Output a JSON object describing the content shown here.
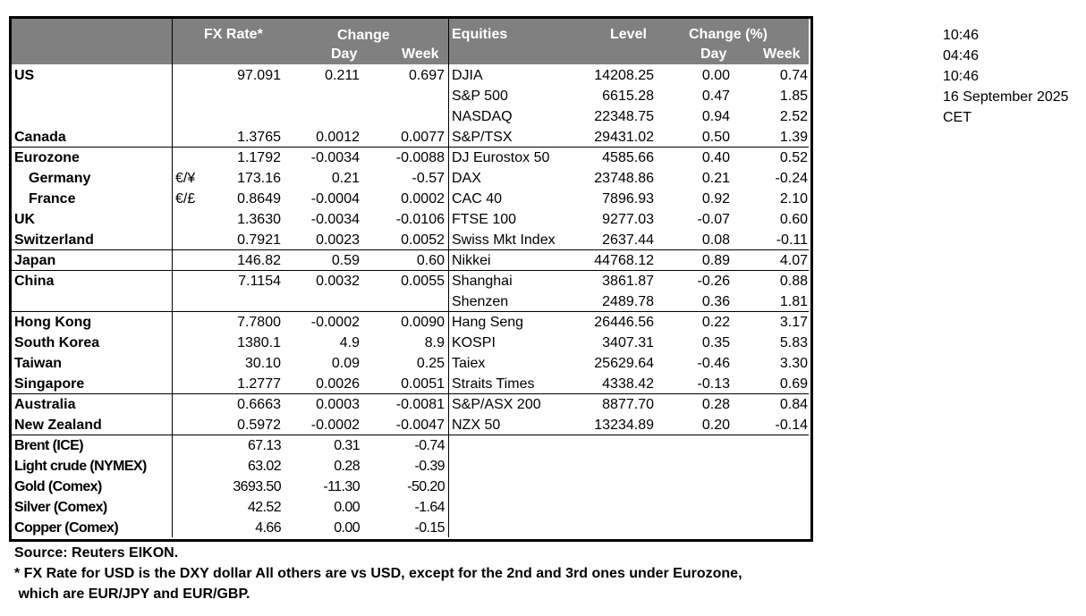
{
  "header": {
    "fx_rate": "FX Rate*",
    "change": "Change",
    "day": "Day",
    "week": "Week",
    "equities": "Equities",
    "level": "Level",
    "change_pct": "Change (%)",
    "eq_day": "Day",
    "eq_week": "Week"
  },
  "groups": [
    {
      "rows": [
        {
          "name": "US",
          "pair": "",
          "rate": "97.091",
          "day": "0.211",
          "week": "0.697",
          "eq": {
            "name": "DJIA",
            "level": "14208.25",
            "day": "0.00",
            "week": "0.74"
          }
        },
        {
          "name": "",
          "pair": "",
          "rate": "",
          "day": "",
          "week": "",
          "eq": {
            "name": "S&P 500",
            "level": "6615.28",
            "day": "0.47",
            "week": "1.85"
          }
        },
        {
          "name": "",
          "pair": "",
          "rate": "",
          "day": "",
          "week": "",
          "eq": {
            "name": "NASDAQ",
            "level": "22348.75",
            "day": "0.94",
            "week": "2.52"
          }
        },
        {
          "name": "Canada",
          "pair": "",
          "rate": "1.3765",
          "day": "0.0012",
          "week": "0.0077",
          "eq": {
            "name": "S&P/TSX",
            "level": "29431.02",
            "day": "0.50",
            "week": "1.39"
          }
        }
      ]
    },
    {
      "rows": [
        {
          "name": "Eurozone",
          "pair": "",
          "rate": "1.1792",
          "day": "-0.0034",
          "week": "-0.0088",
          "eq": {
            "name": "DJ Eurostox 50",
            "level": "4585.66",
            "day": "0.40",
            "week": "0.52"
          }
        },
        {
          "name": "Germany",
          "indent": true,
          "pair": "€/¥",
          "rate": "173.16",
          "day": "0.21",
          "week": "-0.57",
          "eq": {
            "name": "DAX",
            "level": "23748.86",
            "day": "0.21",
            "week": "-0.24"
          }
        },
        {
          "name": "France",
          "indent": true,
          "pair": "€/£",
          "rate": "0.8649",
          "day": "-0.0004",
          "week": "0.0002",
          "eq": {
            "name": "CAC 40",
            "level": "7896.93",
            "day": "0.92",
            "week": "2.10"
          }
        },
        {
          "name": "UK",
          "pair": "",
          "rate": "1.3630",
          "day": "-0.0034",
          "week": "-0.0106",
          "eq": {
            "name": "FTSE 100",
            "level": "9277.03",
            "day": "-0.07",
            "week": "0.60"
          }
        },
        {
          "name": "Switzerland",
          "pair": "",
          "rate": "0.7921",
          "day": "0.0023",
          "week": "0.0052",
          "eq": {
            "name": "Swiss Mkt Index",
            "level": "2637.44",
            "day": "0.08",
            "week": "-0.11"
          }
        }
      ]
    },
    {
      "rows": [
        {
          "name": "Japan",
          "pair": "",
          "rate": "146.82",
          "day": "0.59",
          "week": "0.60",
          "eq": {
            "name": "Nikkei",
            "level": "44768.12",
            "day": "0.89",
            "week": "4.07"
          }
        }
      ]
    },
    {
      "rows": [
        {
          "name": "China",
          "pair": "",
          "rate": "7.1154",
          "day": "0.0032",
          "week": "0.0055",
          "eq": {
            "name": "Shanghai",
            "level": "3861.87",
            "day": "-0.26",
            "week": "0.88"
          }
        },
        {
          "name": "",
          "pair": "",
          "rate": "",
          "day": "",
          "week": "",
          "eq": {
            "name": "Shenzen",
            "level": "2489.78",
            "day": "0.36",
            "week": "1.81"
          }
        }
      ]
    },
    {
      "rows": [
        {
          "name": "Hong Kong",
          "pair": "",
          "rate": "7.7800",
          "day": "-0.0002",
          "week": "0.0090",
          "eq": {
            "name": "Hang Seng",
            "level": "26446.56",
            "day": "0.22",
            "week": "3.17"
          }
        },
        {
          "name": "South Korea",
          "pair": "",
          "rate": "1380.1",
          "day": "4.9",
          "week": "8.9",
          "eq": {
            "name": "KOSPI",
            "level": "3407.31",
            "day": "0.35",
            "week": "5.83"
          }
        },
        {
          "name": "Taiwan",
          "pair": "",
          "rate": "30.10",
          "day": "0.09",
          "week": "0.25",
          "eq": {
            "name": "Taiex",
            "level": "25629.64",
            "day": "-0.46",
            "week": "3.30"
          }
        },
        {
          "name": "Singapore",
          "pair": "",
          "rate": "1.2777",
          "day": "0.0026",
          "week": "0.0051",
          "eq": {
            "name": "Straits Times",
            "level": "4338.42",
            "day": "-0.13",
            "week": "0.69"
          }
        }
      ]
    },
    {
      "rows": [
        {
          "name": "Australia",
          "pair": "",
          "rate": "0.6663",
          "day": "0.0003",
          "week": "-0.0081",
          "eq": {
            "name": "S&P/ASX  200",
            "level": "8877.70",
            "day": "0.28",
            "week": "0.84"
          }
        },
        {
          "name": "New Zealand",
          "pair": "",
          "rate": "0.5972",
          "day": "-0.0002",
          "week": "-0.0047",
          "eq": {
            "name": "NZX 50",
            "level": "13234.89",
            "day": "0.20",
            "week": "-0.14"
          }
        }
      ]
    },
    {
      "commodity": true,
      "rows": [
        {
          "name": "Brent (ICE)",
          "pair": "",
          "rate": "67.13",
          "day": "0.31",
          "week": "-0.74"
        },
        {
          "name": "Light crude (NYMEX)",
          "pair": "",
          "rate": "63.02",
          "day": "0.28",
          "week": "-0.39"
        },
        {
          "name": "Gold (Comex)",
          "pair": "",
          "rate": "3693.50",
          "day": "-11.30",
          "week": "-50.20"
        },
        {
          "name": "Silver (Comex)",
          "pair": "",
          "rate": "42.52",
          "day": "0.00",
          "week": "-1.64"
        },
        {
          "name": "Copper (Comex)",
          "pair": "",
          "rate": "4.66",
          "day": "0.00",
          "week": "-0.15"
        }
      ]
    }
  ],
  "notes": {
    "source": "Source:  Reuters EIKON.",
    "footnote_1": "* FX Rate for USD is the DXY dollar  All others are vs USD, except for the 2nd and 3rd ones under Eurozone,",
    "footnote_2": " which are EUR/JPY and EUR/GBP."
  },
  "side": [
    "10:46",
    "04:46",
    "10:46",
    "16 September 2025",
    "CET"
  ]
}
